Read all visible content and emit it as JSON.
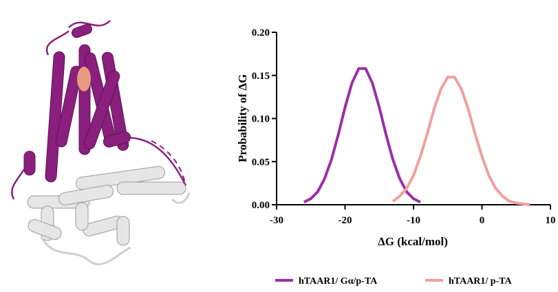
{
  "chart_data": {
    "type": "line",
    "xlabel": "ΔG (kcal/mol)",
    "ylabel": "Probability of ΔG",
    "xlim": [
      -30,
      10
    ],
    "xticks": [
      -30,
      -20,
      -10,
      0,
      10
    ],
    "ylim": [
      0,
      0.2
    ],
    "yticks": [
      {
        "value": 0,
        "label": "0.00"
      },
      {
        "value": 0.05,
        "label": "0.05"
      },
      {
        "value": 0.1,
        "label": "0.10"
      },
      {
        "value": 0.15,
        "label": "0.15"
      },
      {
        "value": 0.2,
        "label": "0.20"
      }
    ],
    "series": [
      {
        "name": "hTAAR1/ Gα/p-TA",
        "color": "#9b2fa6",
        "x": [
          -26,
          -25,
          -24,
          -23,
          -22,
          -21,
          -20,
          -19,
          -18,
          -17,
          -16,
          -15,
          -14,
          -13,
          -12,
          -11,
          -10,
          -9
        ],
        "values": [
          0.003,
          0.007,
          0.015,
          0.03,
          0.052,
          0.081,
          0.113,
          0.141,
          0.158,
          0.158,
          0.141,
          0.113,
          0.081,
          0.052,
          0.03,
          0.015,
          0.007,
          0.003
        ]
      },
      {
        "name": "hTAAR1/ p-TA",
        "color": "#f0a09e",
        "x": [
          -13,
          -12,
          -11,
          -10,
          -9,
          -8,
          -7,
          -6,
          -5,
          -4,
          -3,
          -2,
          -1,
          0,
          1,
          2,
          3,
          4,
          5,
          6,
          7
        ],
        "values": [
          0.004,
          0.01,
          0.019,
          0.034,
          0.056,
          0.082,
          0.111,
          0.134,
          0.148,
          0.148,
          0.134,
          0.111,
          0.082,
          0.056,
          0.034,
          0.019,
          0.01,
          0.004,
          0.002,
          0.001,
          0
        ]
      }
    ]
  }
}
